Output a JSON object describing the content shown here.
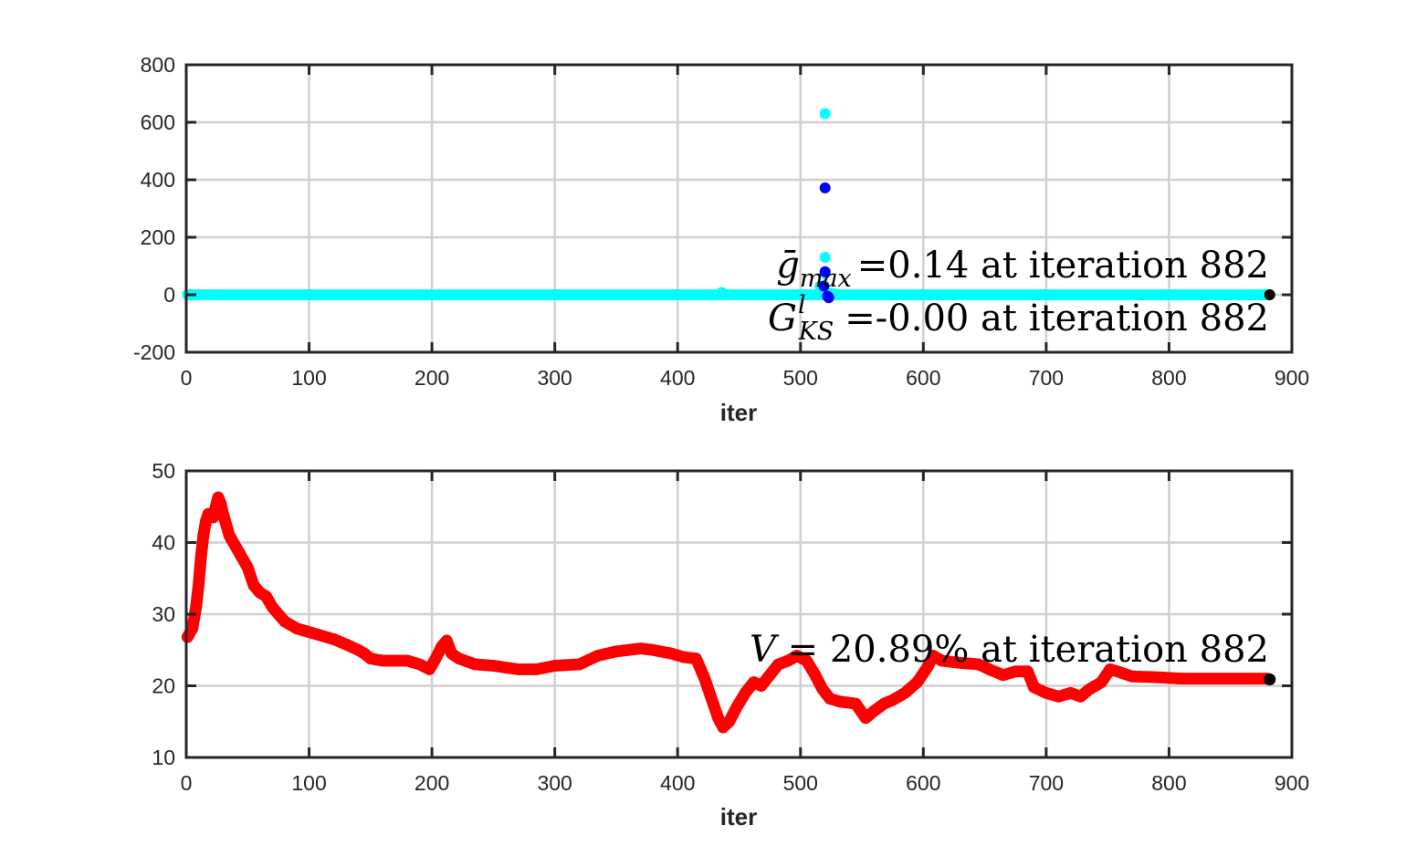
{
  "chart_data": [
    {
      "type": "scatter",
      "xlabel": "iter",
      "ylabel": "",
      "xlim": [
        0,
        900
      ],
      "ylim": [
        -200,
        800
      ],
      "xticks": [
        "0",
        "100",
        "200",
        "300",
        "400",
        "500",
        "600",
        "700",
        "800",
        "900"
      ],
      "yticks": [
        "800",
        "600",
        "400",
        "200",
        "0",
        "-200"
      ],
      "grid": true,
      "annotations": [
        {
          "symbol": "ḡ",
          "subscript": "max",
          "superscript": "",
          "text": "=0.14 at iteration 882"
        },
        {
          "symbol": "G",
          "subscript": "KS",
          "superscript": "l",
          "text": "=-0.00 at iteration 882"
        }
      ],
      "series": [
        {
          "color": "#00ffff",
          "x_range": [
            1,
            881
          ],
          "baseline": 0,
          "outliers": [
            [
              520,
              630
            ],
            [
              520,
              130
            ],
            [
              520,
              75
            ],
            [
              516,
              30
            ],
            [
              436,
              8
            ],
            [
              525,
              5
            ],
            [
              528,
              3
            ]
          ]
        },
        {
          "color": "#0000ff",
          "outliers": [
            [
              520,
              372
            ],
            [
              520,
              80
            ],
            [
              519,
              30
            ],
            [
              522,
              -5
            ],
            [
              523,
              -10
            ]
          ]
        },
        {
          "color": "#000000",
          "points": [
            [
              882,
              0.14
            ]
          ]
        }
      ]
    },
    {
      "type": "scatter",
      "xlabel": "iter",
      "ylabel": "",
      "xlim": [
        0,
        900
      ],
      "ylim": [
        10,
        50
      ],
      "xticks": [
        "0",
        "100",
        "200",
        "300",
        "400",
        "500",
        "600",
        "700",
        "800",
        "900"
      ],
      "yticks": [
        "50",
        "40",
        "30",
        "20",
        "10"
      ],
      "grid": true,
      "annotations": [
        {
          "symbol": "V",
          "subscript": "",
          "superscript": "",
          "text": " = 20.89% at iteration 882"
        }
      ],
      "series": [
        {
          "color": "#ff0000",
          "points": [
            [
              1,
              26.8
            ],
            [
              5,
              28
            ],
            [
              8,
              31
            ],
            [
              10,
              34
            ],
            [
              12,
              38
            ],
            [
              14,
              41
            ],
            [
              16,
              43
            ],
            [
              18,
              44
            ],
            [
              20,
              44
            ],
            [
              22,
              43.5
            ],
            [
              24,
              45
            ],
            [
              26,
              46.3
            ],
            [
              28,
              45.5
            ],
            [
              30,
              44
            ],
            [
              35,
              41
            ],
            [
              40,
              39.5
            ],
            [
              45,
              38
            ],
            [
              50,
              36.5
            ],
            [
              55,
              34
            ],
            [
              60,
              33
            ],
            [
              65,
              32.5
            ],
            [
              70,
              31
            ],
            [
              75,
              30
            ],
            [
              80,
              29
            ],
            [
              85,
              28.5
            ],
            [
              90,
              28
            ],
            [
              100,
              27.5
            ],
            [
              110,
              27
            ],
            [
              120,
              26.5
            ],
            [
              130,
              25.8
            ],
            [
              140,
              25
            ],
            [
              145,
              24.5
            ],
            [
              150,
              23.8
            ],
            [
              160,
              23.5
            ],
            [
              170,
              23.5
            ],
            [
              180,
              23.5
            ],
            [
              190,
              23
            ],
            [
              198,
              22.3
            ],
            [
              203,
              23.8
            ],
            [
              208,
              25.5
            ],
            [
              212,
              26.3
            ],
            [
              216,
              24.5
            ],
            [
              222,
              23.8
            ],
            [
              235,
              23
            ],
            [
              250,
              22.8
            ],
            [
              270,
              22.3
            ],
            [
              285,
              22.3
            ],
            [
              300,
              22.8
            ],
            [
              320,
              23
            ],
            [
              335,
              24.2
            ],
            [
              350,
              24.8
            ],
            [
              360,
              25
            ],
            [
              370,
              25.2
            ],
            [
              380,
              25
            ],
            [
              395,
              24.5
            ],
            [
              405,
              24
            ],
            [
              415,
              23.8
            ],
            [
              422,
              21
            ],
            [
              428,
              18
            ],
            [
              433,
              15.5
            ],
            [
              437,
              14.2
            ],
            [
              442,
              15
            ],
            [
              448,
              17
            ],
            [
              455,
              19
            ],
            [
              462,
              20.5
            ],
            [
              468,
              20
            ],
            [
              475,
              21.5
            ],
            [
              482,
              23
            ],
            [
              490,
              23.5
            ],
            [
              497,
              24.2
            ],
            [
              505,
              23.5
            ],
            [
              512,
              21.5
            ],
            [
              518,
              19.5
            ],
            [
              524,
              18.2
            ],
            [
              532,
              17.8
            ],
            [
              545,
              17.5
            ],
            [
              553,
              15.5
            ],
            [
              560,
              16.5
            ],
            [
              568,
              17.5
            ],
            [
              575,
              18
            ],
            [
              585,
              19
            ],
            [
              595,
              20.5
            ],
            [
              603,
              22.5
            ],
            [
              608,
              24.2
            ],
            [
              615,
              23.5
            ],
            [
              630,
              23.2
            ],
            [
              645,
              23
            ],
            [
              655,
              22.2
            ],
            [
              665,
              21.5
            ],
            [
              675,
              22
            ],
            [
              685,
              22
            ],
            [
              690,
              19.8
            ],
            [
              700,
              19
            ],
            [
              710,
              18.5
            ],
            [
              720,
              19
            ],
            [
              728,
              18.5
            ],
            [
              735,
              19.5
            ],
            [
              745,
              20.5
            ],
            [
              752,
              22.3
            ],
            [
              758,
              22
            ],
            [
              770,
              21.3
            ],
            [
              790,
              21.2
            ],
            [
              810,
              21
            ],
            [
              830,
              21
            ],
            [
              850,
              21
            ],
            [
              870,
              21
            ],
            [
              880,
              21
            ]
          ]
        },
        {
          "color": "#000000",
          "points": [
            [
              882,
              20.89
            ]
          ]
        }
      ]
    }
  ]
}
